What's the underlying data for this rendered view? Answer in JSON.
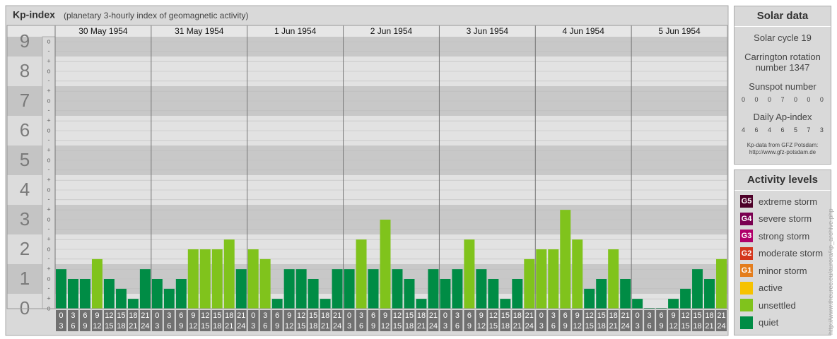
{
  "header": {
    "title": "Kp-index",
    "subtitle": "(planetary 3-hourly index of geomagnetic activity)"
  },
  "chart_data": {
    "type": "bar",
    "ylim": [
      0,
      9
    ],
    "yticks": [
      0,
      1,
      2,
      3,
      4,
      5,
      6,
      7,
      8,
      9
    ],
    "minor_yticks": [
      {
        "value": 0,
        "label": "o"
      },
      {
        "value": 0.33,
        "label": "+"
      },
      {
        "value": 0.67,
        "label": "-"
      },
      {
        "value": 1,
        "label": "o"
      },
      {
        "value": 1.33,
        "label": "+"
      },
      {
        "value": 1.67,
        "label": "-"
      },
      {
        "value": 2,
        "label": "o"
      },
      {
        "value": 2.33,
        "label": "+"
      },
      {
        "value": 2.67,
        "label": "-"
      },
      {
        "value": 3,
        "label": "o"
      },
      {
        "value": 3.33,
        "label": "+"
      },
      {
        "value": 3.67,
        "label": "-"
      },
      {
        "value": 4,
        "label": "o"
      },
      {
        "value": 4.33,
        "label": "+"
      },
      {
        "value": 4.67,
        "label": "-"
      },
      {
        "value": 5,
        "label": "o"
      },
      {
        "value": 5.33,
        "label": "+"
      },
      {
        "value": 5.67,
        "label": "-"
      },
      {
        "value": 6,
        "label": "o"
      },
      {
        "value": 6.33,
        "label": "+"
      },
      {
        "value": 6.67,
        "label": "-"
      },
      {
        "value": 7,
        "label": "o"
      },
      {
        "value": 7.33,
        "label": "+"
      },
      {
        "value": 7.67,
        "label": "-"
      },
      {
        "value": 8,
        "label": "o"
      },
      {
        "value": 8.33,
        "label": "+"
      },
      {
        "value": 8.67,
        "label": "-"
      },
      {
        "value": 9,
        "label": "o"
      }
    ],
    "slots": [
      [
        0,
        3
      ],
      [
        3,
        6
      ],
      [
        6,
        9
      ],
      [
        9,
        12
      ],
      [
        12,
        15
      ],
      [
        15,
        18
      ],
      [
        18,
        21
      ],
      [
        21,
        24
      ]
    ],
    "series": [
      {
        "name": "30 May 1954",
        "values": [
          1.33,
          1,
          1,
          1.67,
          1,
          0.67,
          0.33,
          1.33
        ],
        "colors": [
          "#008c45",
          "#008c45",
          "#008c45",
          "#80c31c",
          "#008c45",
          "#008c45",
          "#008c45",
          "#008c45"
        ]
      },
      {
        "name": "31 May 1954",
        "values": [
          1,
          0.67,
          1,
          2,
          2,
          2,
          2.33,
          1.33
        ],
        "colors": [
          "#008c45",
          "#008c45",
          "#008c45",
          "#80c31c",
          "#80c31c",
          "#80c31c",
          "#80c31c",
          "#008c45"
        ]
      },
      {
        "name": "1 Jun 1954",
        "values": [
          2,
          1.67,
          0.33,
          1.33,
          1.33,
          1,
          0.33,
          1.33
        ],
        "colors": [
          "#80c31c",
          "#80c31c",
          "#008c45",
          "#008c45",
          "#008c45",
          "#008c45",
          "#008c45",
          "#008c45"
        ]
      },
      {
        "name": "2 Jun 1954",
        "values": [
          1.33,
          2.33,
          1.33,
          3,
          1.33,
          1,
          0.33,
          1.33
        ],
        "colors": [
          "#008c45",
          "#80c31c",
          "#008c45",
          "#80c31c",
          "#008c45",
          "#008c45",
          "#008c45",
          "#008c45"
        ]
      },
      {
        "name": "3 Jun 1954",
        "values": [
          1,
          1.33,
          2.33,
          1.33,
          1,
          0.33,
          1,
          1.67
        ],
        "colors": [
          "#008c45",
          "#008c45",
          "#80c31c",
          "#008c45",
          "#008c45",
          "#008c45",
          "#008c45",
          "#80c31c"
        ]
      },
      {
        "name": "4 Jun 1954",
        "values": [
          2,
          2,
          3.33,
          2.33,
          0.67,
          1,
          2,
          1
        ],
        "colors": [
          "#80c31c",
          "#80c31c",
          "#80c31c",
          "#80c31c",
          "#008c45",
          "#008c45",
          "#80c31c",
          "#008c45"
        ]
      },
      {
        "name": "5 Jun 1954",
        "values": [
          0.33,
          0,
          0,
          0.33,
          0.67,
          1.33,
          1,
          1.67
        ],
        "colors": [
          "#008c45",
          "#008c45",
          "#008c45",
          "#008c45",
          "#008c45",
          "#008c45",
          "#008c45",
          "#80c31c"
        ]
      }
    ]
  },
  "solar_data": {
    "title": "Solar data",
    "cycle": "Solar cycle 19",
    "carrington": "Carrington rotation number 1347",
    "sunspot_label": "Sunspot number",
    "sunspot": [
      0,
      0,
      0,
      7,
      0,
      0,
      0
    ],
    "ap_label": "Daily Ap-index",
    "ap": [
      4,
      6,
      4,
      6,
      5,
      7,
      3
    ],
    "credit": [
      "Kp-data from GFZ Potsdam:",
      "http://www.gfz-potsdam.de"
    ]
  },
  "activity_levels": {
    "title": "Activity levels",
    "items": [
      {
        "badge": "G5",
        "label": "extreme storm",
        "color": "#4d0028"
      },
      {
        "badge": "G4",
        "label": "severe storm",
        "color": "#7a0050"
      },
      {
        "badge": "G3",
        "label": "strong storm",
        "color": "#b0006a"
      },
      {
        "badge": "G2",
        "label": "moderate storm",
        "color": "#d4361c"
      },
      {
        "label": "minor storm",
        "badge": "G1",
        "color": "#e47d1c"
      },
      {
        "label": "active",
        "color": "#f6c200"
      },
      {
        "label": "unsettled",
        "color": "#80c31c"
      },
      {
        "label": "quiet",
        "color": "#008c45"
      }
    ]
  },
  "source_url": "http://www.theurec.eu/aurora/kp_archive.php"
}
